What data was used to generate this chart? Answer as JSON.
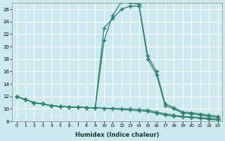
{
  "xlabel": "Humidex (Indice chaleur)",
  "background_color": "#cbe9ee",
  "grid_color": "#ffffff",
  "line_color": "#2e7d6e",
  "xlim": [
    -0.5,
    23.5
  ],
  "ylim": [
    8,
    27
  ],
  "xticks": [
    0,
    1,
    2,
    3,
    4,
    5,
    6,
    7,
    8,
    9,
    10,
    11,
    12,
    13,
    14,
    15,
    16,
    17,
    18,
    19,
    20,
    21,
    22,
    23
  ],
  "yticks": [
    8,
    10,
    12,
    14,
    16,
    18,
    20,
    22,
    24,
    26
  ],
  "series": [
    {
      "x": [
        0,
        1,
        2,
        3,
        4,
        5,
        6,
        7,
        8,
        9,
        10,
        11,
        12,
        13,
        14,
        15,
        16,
        17,
        18,
        19,
        20,
        21,
        22,
        23
      ],
      "y": [
        12,
        11.5,
        11.0,
        10.8,
        10.5,
        10.4,
        10.3,
        10.3,
        10.2,
        10.2,
        21.0,
        25.0,
        27.2,
        27.0,
        26.8,
        18.5,
        16.0,
        10.8,
        10.2,
        9.5,
        9.4,
        9.2,
        9.0,
        8.8
      ]
    },
    {
      "x": [
        0,
        1,
        2,
        3,
        4,
        5,
        6,
        7,
        8,
        9,
        10,
        11,
        12,
        13,
        14,
        15,
        16,
        17,
        18,
        19,
        20,
        21,
        22,
        23
      ],
      "y": [
        12,
        11.5,
        11.0,
        10.8,
        10.5,
        10.4,
        10.3,
        10.3,
        10.2,
        10.2,
        23.0,
        24.5,
        26.0,
        26.5,
        26.5,
        18.0,
        15.5,
        10.5,
        10.0,
        9.3,
        9.2,
        9.0,
        8.8,
        8.6
      ]
    },
    {
      "x": [
        0,
        1,
        2,
        3,
        4,
        5,
        6,
        7,
        8,
        9,
        10,
        11,
        12,
        13,
        14,
        15,
        16,
        17,
        18,
        19,
        20,
        21,
        22,
        23
      ],
      "y": [
        12,
        11.5,
        11.0,
        10.8,
        10.5,
        10.4,
        10.3,
        10.3,
        10.2,
        10.2,
        10.1,
        10.1,
        10.0,
        10.0,
        9.9,
        9.8,
        9.5,
        9.2,
        9.0,
        8.8,
        8.7,
        8.6,
        8.5,
        8.3
      ]
    },
    {
      "x": [
        0,
        1,
        2,
        3,
        4,
        5,
        6,
        7,
        8,
        9,
        10,
        11,
        12,
        13,
        14,
        15,
        16,
        17,
        18,
        19,
        20,
        21,
        22,
        23
      ],
      "y": [
        12,
        11.5,
        11.0,
        10.8,
        10.5,
        10.4,
        10.3,
        10.3,
        10.2,
        10.2,
        10.1,
        10.0,
        9.9,
        9.8,
        9.7,
        9.6,
        9.3,
        9.0,
        8.8,
        8.7,
        8.6,
        8.5,
        8.3,
        8.2
      ]
    }
  ]
}
